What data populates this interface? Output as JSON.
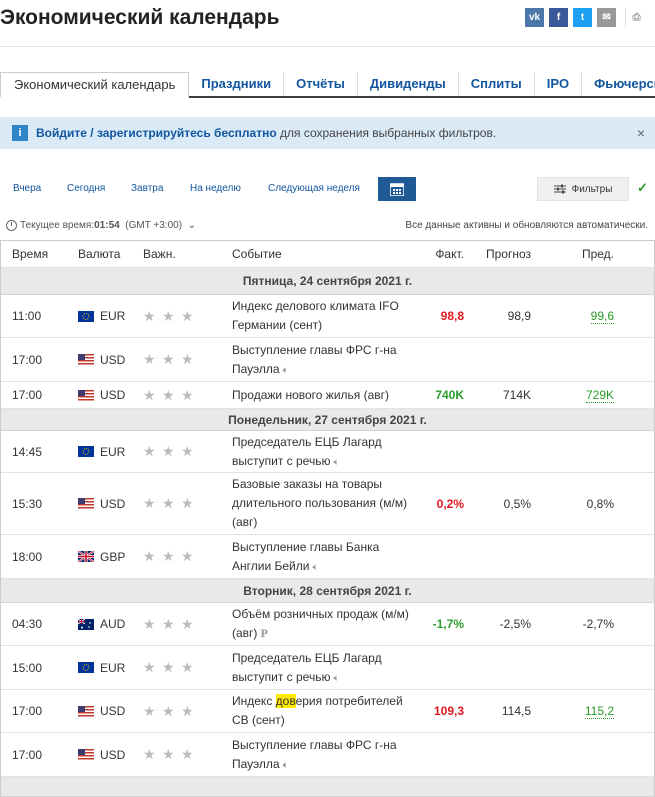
{
  "header": {
    "title": "Экономический календарь"
  },
  "share": {
    "vk": "vk",
    "fb": "f",
    "tw": "t",
    "em": "✉",
    "pr": "⎙"
  },
  "tabs": [
    "Экономический календарь",
    "Праздники",
    "Отчёты",
    "Дивиденды",
    "Сплиты",
    "IPO",
    "Фьючерсы"
  ],
  "banner": {
    "login": "Войдите",
    "sep": " / ",
    "register": "зарегистрируйтесь бесплатно",
    "rest": " для сохранения выбранных фильтров.",
    "close": "×"
  },
  "date_buttons": [
    "Вчера",
    "Сегодня",
    "Завтра",
    "На неделю",
    "Следующая неделя"
  ],
  "filters_label": "Фильтры",
  "timebar": {
    "label": "Текущее время:",
    "time": "01:54",
    "tz": "(GMT +3:00)",
    "auto": "Все данные активны и обновляются автоматически."
  },
  "table": {
    "headers": {
      "time": "Время",
      "currency": "Валюта",
      "importance": "Важн.",
      "event": "Событие",
      "actual": "Факт.",
      "forecast": "Прогноз",
      "previous": "Пред."
    },
    "dates": [
      "Пятница, 24 сентября 2021 г.",
      "Понедельник, 27 сентября 2021 г.",
      "Вторник, 28 сентября 2021 г."
    ],
    "rows": [
      {
        "time": "11:00",
        "currency": "EUR",
        "event": "Индекс делового климата IFO Германии (сент)",
        "actual": "98,8",
        "forecast": "98,9",
        "previous": "99,6"
      },
      {
        "time": "17:00",
        "currency": "USD",
        "event": "Выступление главы ФРС г-на Пауэлла",
        "actual": "",
        "forecast": "",
        "previous": ""
      },
      {
        "time": "17:00",
        "currency": "USD",
        "event": "Продажи нового жилья (авг)",
        "actual": "740K",
        "forecast": "714K",
        "previous": "729K"
      },
      {
        "time": "14:45",
        "currency": "EUR",
        "event": "Председатель ЕЦБ Лагард выступит с речью",
        "actual": "",
        "forecast": "",
        "previous": ""
      },
      {
        "time": "15:30",
        "currency": "USD",
        "event": "Базовые заказы на товары длительного пользования (м/м) (авг)",
        "actual": "0,2%",
        "forecast": "0,5%",
        "previous": "0,8%"
      },
      {
        "time": "18:00",
        "currency": "GBP",
        "event": "Выступление главы Банка Англии Бейли",
        "actual": "",
        "forecast": "",
        "previous": ""
      },
      {
        "time": "04:30",
        "currency": "AUD",
        "event": "Объём розничных продаж (м/м) (авг)",
        "actual": "-1,7%",
        "forecast": "-2,5%",
        "previous": "-2,7%"
      },
      {
        "time": "15:00",
        "currency": "EUR",
        "event": "Председатель ЕЦБ Лагард выступит с речью",
        "actual": "",
        "forecast": "",
        "previous": ""
      },
      {
        "time": "17:00",
        "currency": "USD",
        "event_a": "Индекс ",
        "event_hl": "дов",
        "event_b": "ерия потребителей СВ (сент)",
        "actual": "109,3",
        "forecast": "114,5",
        "previous": "115,2"
      },
      {
        "time": "17:00",
        "currency": "USD",
        "event": "Выступление главы ФРС г-на Пауэлла",
        "actual": "",
        "forecast": "",
        "previous": ""
      }
    ]
  },
  "colors": {
    "accent": "#1256a0",
    "positive": "#2a9d2a",
    "negative": "#e4161d"
  }
}
